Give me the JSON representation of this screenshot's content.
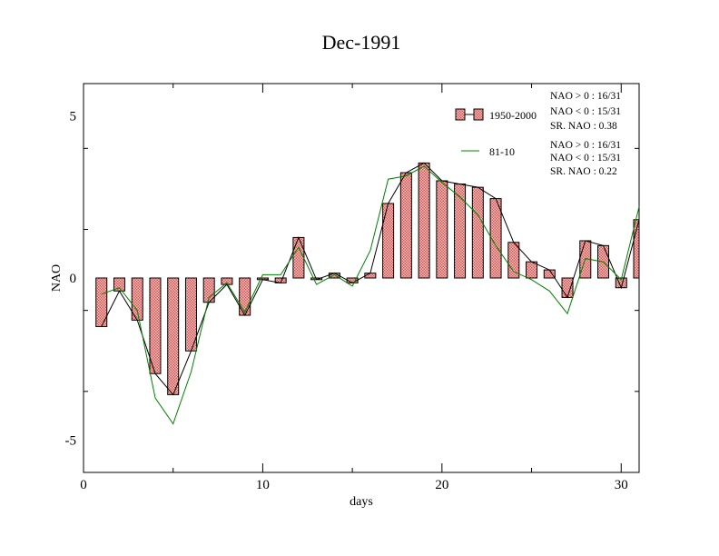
{
  "chart_data": {
    "type": "bar",
    "title": "Dec-1991",
    "xlabel": "days",
    "ylabel": "NAO",
    "xlim": [
      0,
      31
    ],
    "ylim": [
      -6,
      6
    ],
    "x_ticks": [
      0,
      10,
      20,
      30
    ],
    "x_tick_labels": [
      "0",
      "10",
      "20",
      "30"
    ],
    "y_ticks": [
      5,
      0,
      -5
    ],
    "y_tick_labels": [
      "5",
      "0",
      "-5"
    ],
    "grid": false,
    "legend_position": "top-right",
    "x": [
      1,
      2,
      3,
      4,
      5,
      6,
      7,
      8,
      9,
      10,
      11,
      12,
      13,
      14,
      15,
      16,
      17,
      18,
      19,
      20,
      21,
      22,
      23,
      24,
      25,
      26,
      27,
      28,
      29,
      30,
      31
    ],
    "series": [
      {
        "name": "1950-2000",
        "kind": "bar+line",
        "color": "#e87d7d",
        "line_color": "#000000",
        "values": [
          -1.5,
          -0.4,
          -1.3,
          -2.95,
          -3.6,
          -2.25,
          -0.75,
          -0.2,
          -1.15,
          -0.05,
          -0.15,
          1.25,
          -0.05,
          0.15,
          -0.15,
          0.15,
          2.3,
          3.25,
          3.55,
          3.0,
          2.9,
          2.8,
          2.45,
          1.1,
          0.5,
          0.25,
          -0.6,
          1.15,
          1.0,
          -0.3,
          1.8
        ]
      },
      {
        "name": "81-10",
        "kind": "line",
        "color": "#008000",
        "values": [
          -0.5,
          -0.3,
          -1.0,
          -3.7,
          -4.5,
          -2.9,
          -0.6,
          -0.15,
          -1.05,
          0.1,
          0.1,
          0.95,
          -0.2,
          0.1,
          -0.25,
          0.85,
          3.05,
          3.15,
          3.45,
          2.95,
          2.5,
          1.95,
          1.0,
          0.2,
          -0.05,
          -0.4,
          -1.1,
          0.6,
          0.5,
          -0.05,
          2.2
        ]
      }
    ],
    "legend": [
      {
        "label": "1950-2000",
        "stats": [
          "NAO > 0 : 16/31",
          "NAO < 0 : 15/31",
          "SR. NAO :  0.38"
        ]
      },
      {
        "label": "81-10",
        "stats": [
          "NAO > 0 : 16/31",
          "NAO < 0 : 15/31",
          "SR. NAO :  0.22"
        ]
      }
    ]
  }
}
